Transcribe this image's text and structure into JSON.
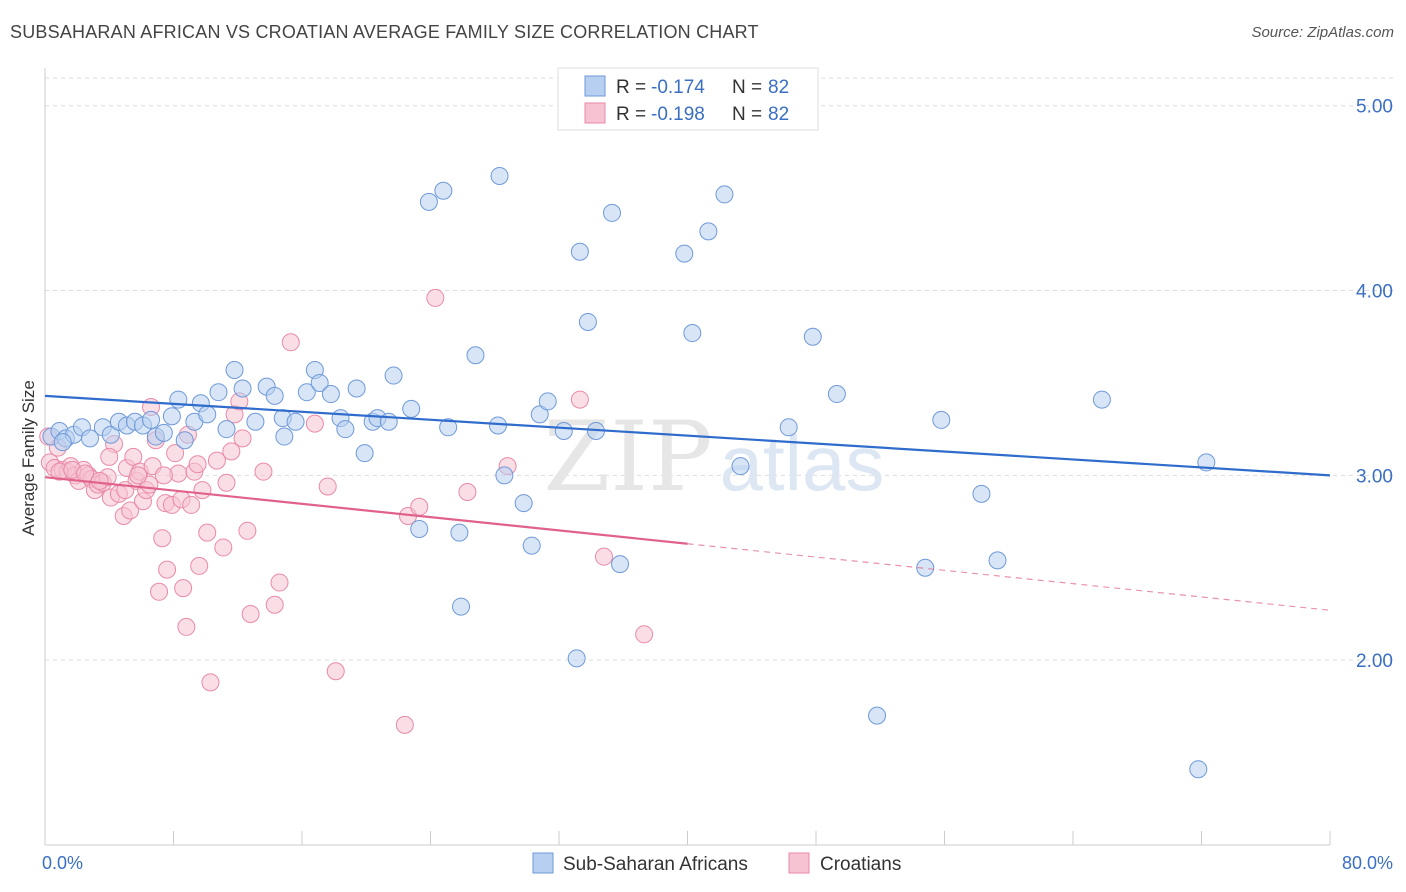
{
  "title": "SUBSAHARAN AFRICAN VS CROATIAN AVERAGE FAMILY SIZE CORRELATION CHART",
  "source": "Source: ZipAtlas.com",
  "watermark": {
    "zip": "ZIP",
    "atlas": "atlas"
  },
  "colors": {
    "blue_fill": "#b7cff0",
    "blue_stroke": "#6f9ad8",
    "blue_line": "#2f6ccc",
    "pink_fill": "#f6c3d2",
    "pink_stroke": "#e98aa8",
    "pink_line": "#e0628b",
    "axis_text": "#3a6fc4",
    "grid": "#dddddd"
  },
  "chart_data": {
    "type": "scatter",
    "title": "SUBSAHARAN AFRICAN VS CROATIAN AVERAGE FAMILY SIZE CORRELATION CHART",
    "xlabel": "",
    "ylabel": "Average Family Size",
    "xlim": [
      0,
      80
    ],
    "ylim": [
      1.0,
      5.15
    ],
    "x_tick_labels": [
      "0.0%",
      "80.0%"
    ],
    "y_ticks": [
      2.0,
      3.0,
      4.0,
      5.0
    ],
    "y_tick_labels": [
      "2.00",
      "3.00",
      "4.00",
      "5.00"
    ],
    "grid": true,
    "legend_position": "top-center",
    "stats": [
      {
        "r_label": "R =",
        "r_value": "-0.174",
        "n_label": "N =",
        "n_value": "82"
      },
      {
        "r_label": "R =",
        "r_value": "-0.198",
        "n_label": "N =",
        "n_value": "82"
      }
    ],
    "series": [
      {
        "name": "Sub-Saharan Africans",
        "color": "#b7cff0",
        "trend": {
          "x": [
            0,
            80
          ],
          "y": [
            3.43,
            3.0
          ]
        },
        "points": [
          [
            0.4,
            3.21
          ],
          [
            0.9,
            3.24
          ],
          [
            1.3,
            3.2
          ],
          [
            1.8,
            3.22
          ],
          [
            2.3,
            3.26
          ],
          [
            2.8,
            3.2
          ],
          [
            3.6,
            3.26
          ],
          [
            4.1,
            3.22
          ],
          [
            4.6,
            3.29
          ],
          [
            5.1,
            3.27
          ],
          [
            5.6,
            3.29
          ],
          [
            6.1,
            3.27
          ],
          [
            6.6,
            3.3
          ],
          [
            6.9,
            3.21
          ],
          [
            7.4,
            3.23
          ],
          [
            7.9,
            3.32
          ],
          [
            8.3,
            3.41
          ],
          [
            8.7,
            3.19
          ],
          [
            9.3,
            3.29
          ],
          [
            9.7,
            3.39
          ],
          [
            10.1,
            3.33
          ],
          [
            10.8,
            3.45
          ],
          [
            11.3,
            3.25
          ],
          [
            11.8,
            3.57
          ],
          [
            12.3,
            3.47
          ],
          [
            13.1,
            3.29
          ],
          [
            13.8,
            3.48
          ],
          [
            14.3,
            3.43
          ],
          [
            14.8,
            3.31
          ],
          [
            14.9,
            3.21
          ],
          [
            15.6,
            3.29
          ],
          [
            16.3,
            3.45
          ],
          [
            16.8,
            3.57
          ],
          [
            17.1,
            3.5
          ],
          [
            17.8,
            3.44
          ],
          [
            18.4,
            3.31
          ],
          [
            18.7,
            3.25
          ],
          [
            19.4,
            3.47
          ],
          [
            19.9,
            3.12
          ],
          [
            20.4,
            3.29
          ],
          [
            20.7,
            3.31
          ],
          [
            21.4,
            3.29
          ],
          [
            21.7,
            3.54
          ],
          [
            22.8,
            3.36
          ],
          [
            23.3,
            2.71
          ],
          [
            23.9,
            4.48
          ],
          [
            24.8,
            4.54
          ],
          [
            25.1,
            3.26
          ],
          [
            25.8,
            2.69
          ],
          [
            25.9,
            2.29
          ],
          [
            26.8,
            3.65
          ],
          [
            28.2,
            3.27
          ],
          [
            28.3,
            4.62
          ],
          [
            28.6,
            3.0
          ],
          [
            29.8,
            2.85
          ],
          [
            30.3,
            2.62
          ],
          [
            30.8,
            3.33
          ],
          [
            31.3,
            3.4
          ],
          [
            32.3,
            3.24
          ],
          [
            33.1,
            2.01
          ],
          [
            33.3,
            4.21
          ],
          [
            33.8,
            3.83
          ],
          [
            34.3,
            3.24
          ],
          [
            35.3,
            4.42
          ],
          [
            35.8,
            2.52
          ],
          [
            39.8,
            4.2
          ],
          [
            40.3,
            3.77
          ],
          [
            41.3,
            4.32
          ],
          [
            42.3,
            4.52
          ],
          [
            43.3,
            3.05
          ],
          [
            46.3,
            3.26
          ],
          [
            47.8,
            3.75
          ],
          [
            49.3,
            3.44
          ],
          [
            51.8,
            1.7
          ],
          [
            54.8,
            2.5
          ],
          [
            55.8,
            3.3
          ],
          [
            58.3,
            2.9
          ],
          [
            59.3,
            2.54
          ],
          [
            65.8,
            3.41
          ],
          [
            72.3,
            3.07
          ],
          [
            71.8,
            1.41
          ],
          [
            1.1,
            3.18
          ]
        ]
      },
      {
        "name": "Croatians",
        "color": "#f6c3d2",
        "trend": {
          "x": [
            0,
            40
          ],
          "y": [
            2.99,
            2.63
          ]
        },
        "trend_extension": {
          "x": [
            40,
            80
          ],
          "y": [
            2.63,
            2.27
          ]
        },
        "points": [
          [
            0.3,
            3.07
          ],
          [
            0.6,
            3.04
          ],
          [
            0.8,
            3.15
          ],
          [
            1.1,
            3.03
          ],
          [
            1.4,
            3.02
          ],
          [
            1.6,
            3.05
          ],
          [
            1.9,
            3.0
          ],
          [
            2.1,
            2.97
          ],
          [
            2.4,
            3.03
          ],
          [
            2.7,
            3.0
          ],
          [
            2.9,
            2.98
          ],
          [
            3.1,
            2.92
          ],
          [
            3.3,
            2.95
          ],
          [
            3.6,
            2.96
          ],
          [
            3.9,
            2.99
          ],
          [
            4.1,
            2.88
          ],
          [
            4.3,
            3.17
          ],
          [
            4.6,
            2.9
          ],
          [
            4.9,
            2.78
          ],
          [
            5.1,
            3.04
          ],
          [
            5.3,
            2.81
          ],
          [
            5.5,
            3.1
          ],
          [
            5.7,
            2.97
          ],
          [
            5.9,
            3.02
          ],
          [
            6.1,
            2.86
          ],
          [
            6.3,
            2.92
          ],
          [
            6.5,
            2.95
          ],
          [
            6.6,
            3.37
          ],
          [
            6.9,
            3.19
          ],
          [
            7.1,
            2.37
          ],
          [
            7.3,
            2.66
          ],
          [
            7.5,
            2.85
          ],
          [
            7.6,
            2.49
          ],
          [
            7.9,
            2.84
          ],
          [
            8.1,
            3.12
          ],
          [
            8.3,
            3.01
          ],
          [
            8.5,
            2.87
          ],
          [
            8.6,
            2.39
          ],
          [
            8.8,
            2.18
          ],
          [
            9.1,
            2.84
          ],
          [
            9.3,
            3.02
          ],
          [
            9.6,
            2.51
          ],
          [
            9.8,
            2.92
          ],
          [
            10.1,
            2.69
          ],
          [
            10.3,
            1.88
          ],
          [
            11.1,
            2.61
          ],
          [
            11.3,
            2.96
          ],
          [
            11.6,
            3.13
          ],
          [
            11.8,
            3.33
          ],
          [
            12.1,
            3.4
          ],
          [
            12.6,
            2.7
          ],
          [
            12.8,
            2.25
          ],
          [
            14.3,
            2.3
          ],
          [
            14.6,
            2.42
          ],
          [
            15.3,
            3.72
          ],
          [
            16.8,
            3.28
          ],
          [
            17.6,
            2.94
          ],
          [
            18.1,
            1.94
          ],
          [
            22.4,
            1.65
          ],
          [
            22.6,
            2.78
          ],
          [
            23.3,
            2.83
          ],
          [
            24.3,
            3.96
          ],
          [
            26.3,
            2.91
          ],
          [
            28.8,
            3.05
          ],
          [
            33.3,
            3.41
          ],
          [
            34.8,
            2.56
          ],
          [
            37.3,
            2.14
          ],
          [
            0.2,
            3.21
          ],
          [
            0.9,
            3.02
          ],
          [
            1.7,
            3.03
          ],
          [
            2.5,
            3.01
          ],
          [
            3.4,
            2.97
          ],
          [
            4.0,
            3.1
          ],
          [
            5.0,
            2.92
          ],
          [
            5.8,
            3.0
          ],
          [
            6.7,
            3.05
          ],
          [
            7.4,
            3.0
          ],
          [
            8.9,
            3.22
          ],
          [
            9.5,
            3.06
          ],
          [
            10.7,
            3.08
          ],
          [
            12.3,
            3.2
          ],
          [
            13.6,
            3.02
          ]
        ]
      }
    ]
  },
  "legend_bottom": [
    "Sub-Saharan Africans",
    "Croatians"
  ]
}
